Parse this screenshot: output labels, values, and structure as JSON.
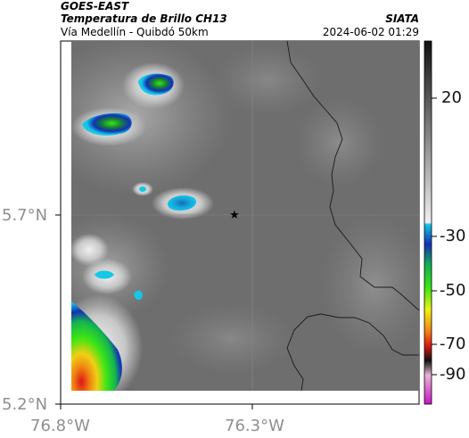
{
  "header": {
    "satellite": "GOES-EAST",
    "title": "Temperatura de Brillo CH13",
    "subtitle": "Vía Medellín - Quibdó 50km",
    "organization": "SIATA",
    "timestamp": "2024-06-02 01:29"
  },
  "axes": {
    "x_ticks": [
      {
        "label": "76.8°W",
        "lon": -76.8
      },
      {
        "label": "76.3°W",
        "lon": -76.3
      }
    ],
    "y_ticks": [
      {
        "label": "5.7°N",
        "lat": 5.7
      },
      {
        "label": "5.2°N",
        "lat": 5.2
      }
    ]
  },
  "map": {
    "grid": true,
    "marker": {
      "symbol": "star",
      "lat": 5.7,
      "lon": -76.34
    },
    "background_color": "#6e6e6e"
  },
  "colorbar": {
    "ticks": [
      "20",
      "-30",
      "-50",
      "-70",
      "-90"
    ],
    "colors": {
      "warm_top": "#111111",
      "warm_bottom": "#f0f0f0",
      "cyan": "#14c8e6",
      "blue": "#1430b4",
      "green": "#3ce614",
      "yellow": "#f0f014",
      "orange": "#f08214",
      "red": "#dc1414",
      "magenta": "#c814c8"
    }
  }
}
